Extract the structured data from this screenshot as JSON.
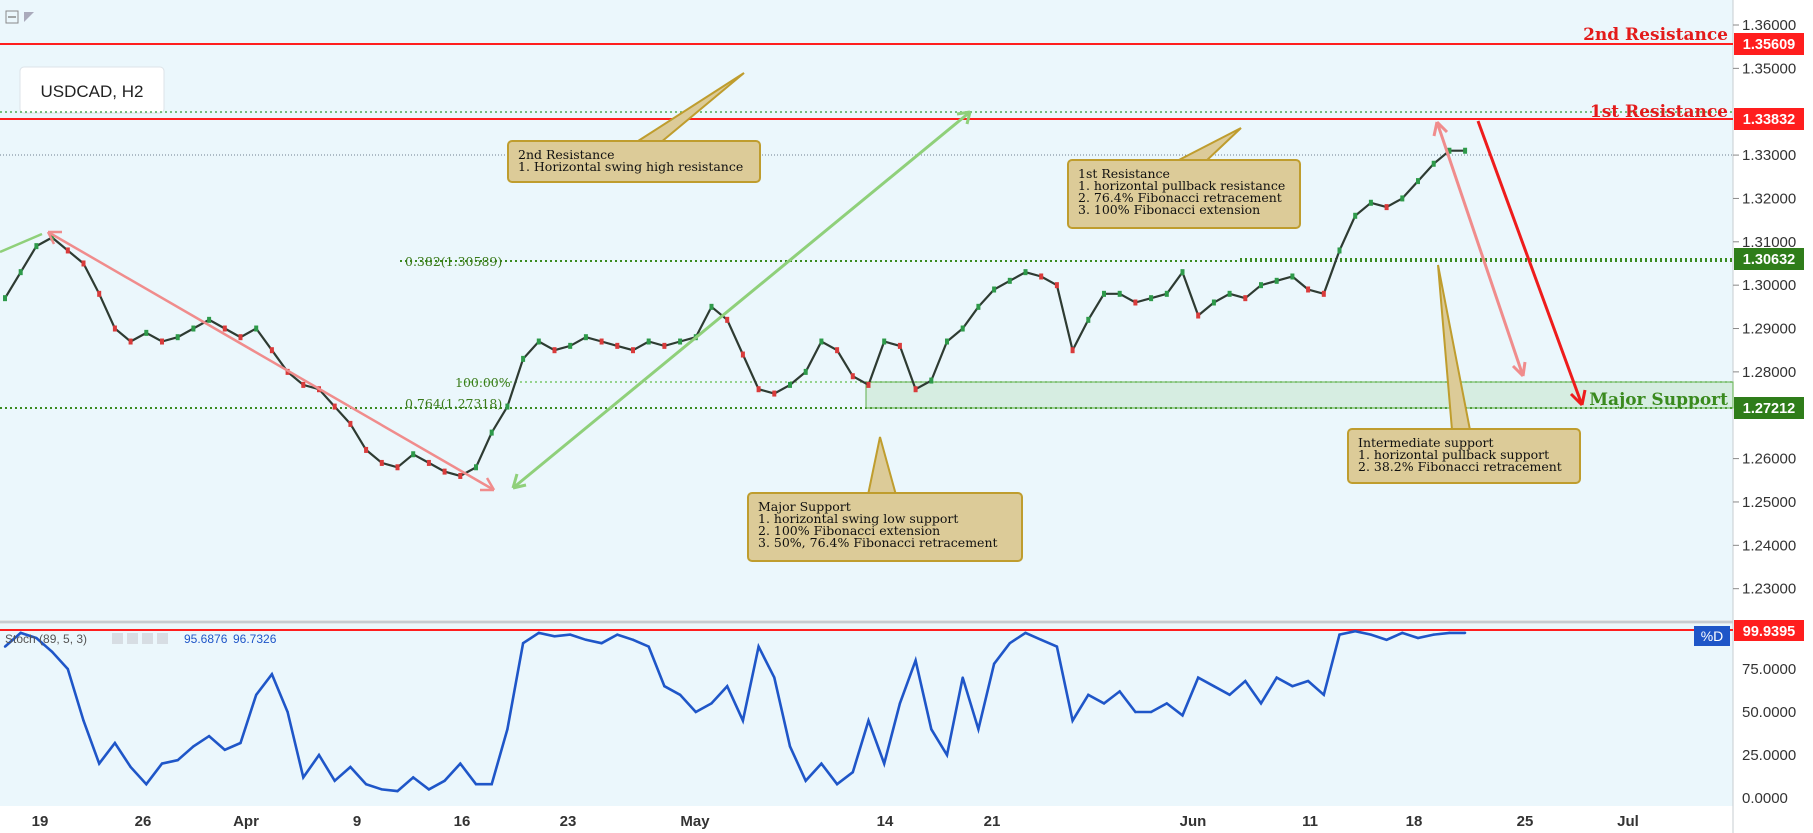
{
  "symbol_label": "USDCAD, H2",
  "stoch_header": {
    "name": "Stoch (89, 5, 3)",
    "k_value": "95.6876",
    "d_value": "96.7326",
    "d_tag": "%D",
    "d_tag_value": "99.9395"
  },
  "levels": {
    "resistance2": {
      "label": "2nd Resistance",
      "price": 1.35609,
      "tag": "1.35609"
    },
    "resistance1": {
      "label": "1st Resistance",
      "price": 1.33832,
      "tag": "1.33832"
    },
    "intermediate": {
      "price": 1.30632,
      "tag": "1.30632"
    },
    "support": {
      "label": "Major Support",
      "price": 1.27212,
      "tag": "1.27212"
    }
  },
  "fib_labels": {
    "fib382": "0.382(1.30589)",
    "fib100": "100.00%",
    "fib764": "0.764(1.27318)"
  },
  "notes": {
    "res2": {
      "title": "2nd Resistance",
      "lines": [
        "1. Horizontal swing high resistance"
      ]
    },
    "res1": {
      "title": "1st Resistance",
      "lines": [
        "1. horizontal pullback resistance",
        "2. 76.4% Fibonacci retracement",
        "3. 100% Fibonacci extension"
      ]
    },
    "support": {
      "title": "Major Support",
      "lines": [
        "1. horizontal swing low support",
        "2. 100% Fibonacci extension",
        "3. 50%, 76.4% Fibonacci retracement"
      ]
    },
    "intermediate": {
      "title": "Intermediate support",
      "lines": [
        "1. horizontal pullback support",
        "2. 38.2% Fibonacci retracement"
      ]
    }
  },
  "chart_data": [
    {
      "type": "line",
      "title": "USDCAD, H2",
      "price_axis_ticks": [
        "1.36000",
        "1.35000",
        "1.33000",
        "1.32000",
        "1.31000",
        "1.30000",
        "1.29000",
        "1.28000",
        "1.26000",
        "1.25000",
        "1.24000",
        "1.23000"
      ],
      "date_labels": [
        "19",
        "26",
        "Apr",
        "9",
        "16",
        "23",
        "May",
        "14",
        "21",
        "Jun",
        "11",
        "18",
        "25",
        "Jul"
      ],
      "ylim": [
        1.22,
        1.365
      ],
      "x_day_range": [
        0,
        103
      ],
      "series": [
        {
          "name": "USDCAD close (approx)",
          "x": [
            0,
            1,
            2,
            3,
            4,
            5,
            6,
            7,
            8,
            9,
            10,
            11,
            12,
            13,
            14,
            15,
            16,
            17,
            18,
            19,
            20,
            21,
            22,
            23,
            24,
            25,
            26,
            27,
            28,
            29,
            30,
            31,
            32,
            33,
            34,
            35,
            36,
            37,
            38,
            39,
            40,
            41,
            42,
            43,
            44,
            45,
            46,
            47,
            48,
            49,
            50,
            51,
            52,
            53,
            54,
            55,
            56,
            57,
            58,
            59,
            60,
            61,
            62,
            63,
            64,
            65,
            66,
            67,
            68,
            69,
            70,
            71,
            72,
            73,
            74,
            75,
            76,
            77,
            78,
            79,
            80,
            81,
            82,
            83,
            84,
            85,
            86,
            87,
            88,
            89,
            90,
            91,
            92,
            93
          ],
          "y": [
            1.297,
            1.303,
            1.309,
            1.311,
            1.308,
            1.305,
            1.298,
            1.29,
            1.287,
            1.289,
            1.287,
            1.288,
            1.29,
            1.292,
            1.29,
            1.288,
            1.29,
            1.285,
            1.28,
            1.277,
            1.276,
            1.272,
            1.268,
            1.262,
            1.259,
            1.258,
            1.261,
            1.259,
            1.257,
            1.256,
            1.258,
            1.266,
            1.272,
            1.283,
            1.287,
            1.285,
            1.286,
            1.288,
            1.287,
            1.286,
            1.285,
            1.287,
            1.286,
            1.287,
            1.288,
            1.295,
            1.292,
            1.284,
            1.276,
            1.275,
            1.277,
            1.28,
            1.287,
            1.285,
            1.279,
            1.277,
            1.287,
            1.286,
            1.276,
            1.278,
            1.287,
            1.29,
            1.295,
            1.299,
            1.301,
            1.303,
            1.302,
            1.3,
            1.285,
            1.292,
            1.298,
            1.298,
            1.296,
            1.297,
            1.298,
            1.303,
            1.293,
            1.296,
            1.298,
            1.297,
            1.3,
            1.301,
            1.302,
            1.299,
            1.298,
            1.308,
            1.316,
            1.319,
            1.318,
            1.32,
            1.324,
            1.328,
            1.331,
            1.331
          ]
        }
      ]
    },
    {
      "type": "line",
      "title": "Stoch (89, 5, 3)",
      "price_axis_ticks": [
        "75.0000",
        "50.0000",
        "25.0000",
        "0.0000"
      ],
      "ylim": [
        0,
        100
      ],
      "series": [
        {
          "name": "%D",
          "x": [
            0,
            1,
            2,
            3,
            4,
            5,
            6,
            7,
            8,
            9,
            10,
            11,
            12,
            13,
            14,
            15,
            16,
            17,
            18,
            19,
            20,
            21,
            22,
            23,
            24,
            25,
            26,
            27,
            28,
            29,
            30,
            31,
            32,
            33,
            34,
            35,
            36,
            37,
            38,
            39,
            40,
            41,
            42,
            43,
            44,
            45,
            46,
            47,
            48,
            49,
            50,
            51,
            52,
            53,
            54,
            55,
            56,
            57,
            58,
            59,
            60,
            61,
            62,
            63,
            64,
            65,
            66,
            67,
            68,
            69,
            70,
            71,
            72,
            73,
            74,
            75,
            76,
            77,
            78,
            79,
            80,
            81,
            82,
            83,
            84,
            85,
            86,
            87,
            88,
            89,
            90,
            91,
            92,
            93
          ],
          "y": [
            88,
            96,
            93,
            85,
            75,
            45,
            20,
            32,
            18,
            8,
            20,
            22,
            30,
            36,
            28,
            32,
            60,
            72,
            50,
            12,
            25,
            10,
            18,
            8,
            5,
            4,
            12,
            5,
            10,
            20,
            8,
            8,
            40,
            90,
            96,
            94,
            95,
            92,
            90,
            95,
            92,
            88,
            65,
            60,
            50,
            55,
            65,
            45,
            88,
            70,
            30,
            10,
            20,
            8,
            15,
            45,
            20,
            55,
            80,
            40,
            25,
            70,
            40,
            78,
            90,
            96,
            92,
            88,
            45,
            60,
            55,
            62,
            50,
            50,
            55,
            48,
            70,
            65,
            60,
            68,
            55,
            70,
            65,
            68,
            60,
            95,
            97,
            95,
            92,
            96,
            93,
            95,
            96,
            96
          ]
        }
      ]
    }
  ]
}
